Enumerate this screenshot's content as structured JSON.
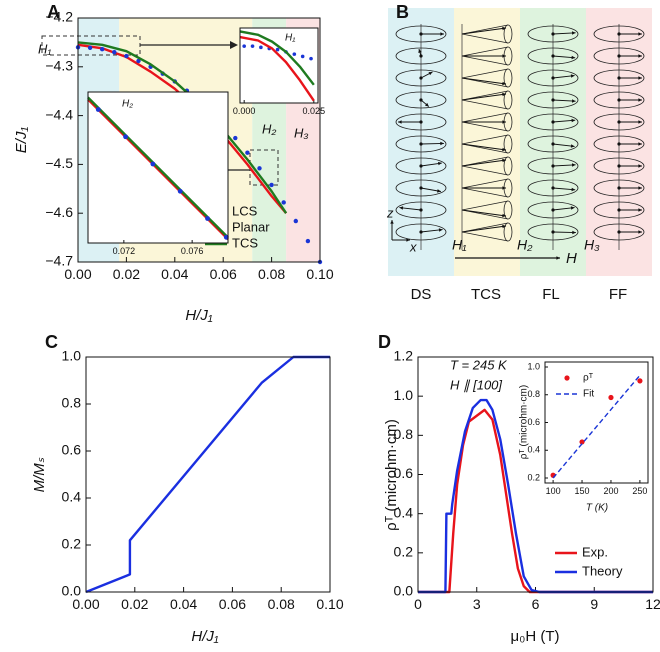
{
  "chart_data": [
    {
      "type": "line",
      "panel": "A",
      "xlabel": "H/J₁",
      "ylabel": "E/J₁",
      "xlim": [
        0,
        0.1
      ],
      "ylim": [
        -4.7,
        -4.2
      ],
      "xticks": [
        {
          "value": 0,
          "label": "0.00"
        },
        0.02,
        0.04,
        0.06,
        0.08,
        {
          "value": 0.1,
          "label": "0.10"
        }
      ],
      "yticks": [
        {
          "value": -4.7,
          "label": "−4.7"
        },
        {
          "value": -4.6,
          "label": "−4.6"
        },
        {
          "value": -4.5,
          "label": "−4.5"
        },
        {
          "value": -4.4,
          "label": "−4.4"
        },
        {
          "value": -4.3,
          "label": "−4.3"
        },
        {
          "value": -4.2,
          "label": "−4.2"
        }
      ],
      "regions": [
        {
          "from": 0,
          "to": 0.017,
          "color": "#dcf1f4"
        },
        {
          "from": 0.017,
          "to": 0.072,
          "color": "#fbf6d8"
        },
        {
          "from": 0.072,
          "to": 0.086,
          "color": "#def3de"
        },
        {
          "from": 0.086,
          "to": 0.1,
          "color": "#fbe3e3"
        }
      ],
      "annotations": [
        "H₁",
        "H₂",
        "H₃"
      ],
      "legend": "lower right",
      "series": [
        {
          "name": "LCS",
          "color": "#e8141b",
          "style": "line",
          "x": [
            0,
            0.01,
            0.02,
            0.03,
            0.04,
            0.05,
            0.06,
            0.07,
            0.08,
            0.086
          ],
          "values": [
            -4.255,
            -4.262,
            -4.28,
            -4.31,
            -4.345,
            -4.39,
            -4.44,
            -4.5,
            -4.565,
            -4.6
          ]
        },
        {
          "name": "Planar",
          "color": "#1a35d6",
          "style": "dots",
          "x": [
            0,
            0.005,
            0.01,
            0.015,
            0.02,
            0.025,
            0.03,
            0.035,
            0.04,
            0.045,
            0.05,
            0.055,
            0.06,
            0.065,
            0.07,
            0.075,
            0.08,
            0.085,
            0.09,
            0.095,
            0.1
          ],
          "values": [
            -4.26,
            -4.261,
            -4.264,
            -4.27,
            -4.278,
            -4.288,
            -4.3,
            -4.314,
            -4.33,
            -4.349,
            -4.37,
            -4.393,
            -4.418,
            -4.446,
            -4.476,
            -4.508,
            -4.542,
            -4.578,
            -4.616,
            -4.657,
            -4.7
          ]
        },
        {
          "name": "TCS",
          "color": "#1f7a1f",
          "style": "line",
          "x": [
            0,
            0.01,
            0.02,
            0.03,
            0.04,
            0.05,
            0.06,
            0.07,
            0.08,
            0.086
          ],
          "values": [
            -4.25,
            -4.255,
            -4.268,
            -4.295,
            -4.33,
            -4.375,
            -4.43,
            -4.49,
            -4.555,
            -4.6
          ]
        }
      ]
    },
    {
      "type": "line",
      "xlim": [
        -0.0015,
        0.0265
      ],
      "ylim": [
        -4.312,
        -4.246
      ],
      "xticks": [
        {
          "value": 0,
          "label": "0.000"
        },
        {
          "value": 0.025,
          "label": "0.025"
        }
      ],
      "annotations": [
        "H₁"
      ],
      "series": [
        {
          "color": "#1a35d6",
          "style": "dots",
          "x": [
            0,
            0.003,
            0.006,
            0.009,
            0.012,
            0.015,
            0.018,
            0.021,
            0.024
          ],
          "values": [
            -4.262,
            -4.262,
            -4.263,
            -4.264,
            -4.265,
            -4.267,
            -4.269,
            -4.271,
            -4.273
          ]
        },
        {
          "color": "#e8141b",
          "style": "line",
          "x": [
            -0.0015,
            0.005,
            0.01,
            0.015,
            0.02,
            0.025
          ],
          "values": [
            -4.254,
            -4.257,
            -4.264,
            -4.276,
            -4.292,
            -4.31
          ]
        },
        {
          "color": "#1f7a1f",
          "style": "line",
          "x": [
            -0.0015,
            0.005,
            0.01,
            0.015,
            0.02,
            0.025
          ],
          "values": [
            -4.249,
            -4.252,
            -4.258,
            -4.267,
            -4.28,
            -4.296
          ]
        }
      ]
    },
    {
      "type": "line",
      "xlim": [
        0.0699,
        0.0781
      ],
      "ylim": [
        -4.547,
        -4.465
      ],
      "xticks": [
        0.072,
        0.076
      ],
      "annotations": [
        "H₂"
      ],
      "series": [
        {
          "color": "#e8141b",
          "style": "line",
          "x": [
            0.0699,
            0.0781
          ],
          "values": [
            -4.469,
            -4.545
          ]
        },
        {
          "color": "#1f7a1f",
          "style": "line",
          "x": [
            0.0699,
            0.0781
          ],
          "values": [
            -4.468,
            -4.544
          ]
        },
        {
          "color": "#1a35d6",
          "style": "dots",
          "x": [
            0.0705,
            0.0721,
            0.0737,
            0.0753,
            0.0769,
            0.078
          ],
          "values": [
            -4.4745,
            -4.4893,
            -4.5041,
            -4.5189,
            -4.5337,
            -4.5439
          ]
        }
      ]
    },
    {
      "type": "line",
      "panel": "C",
      "xlabel": "H/J₁",
      "ylabel": "M/Mₛ",
      "xlim": [
        0,
        0.1
      ],
      "ylim": [
        0,
        1
      ],
      "xticks": [
        {
          "value": 0,
          "label": "0.00"
        },
        0.02,
        0.04,
        0.06,
        0.08,
        {
          "value": 0.1,
          "label": "0.10"
        }
      ],
      "yticks": [
        {
          "value": 0,
          "label": "0.0"
        },
        0.2,
        0.4,
        0.6,
        0.8,
        {
          "value": 1,
          "label": "1.0"
        }
      ],
      "series": [
        {
          "color": "#1a2fe0",
          "style": "line",
          "x": [
            0,
            0.018,
            0.018,
            0.072,
            0.085,
            0.1
          ],
          "values": [
            0,
            0.075,
            0.22,
            0.89,
            1,
            1
          ]
        }
      ]
    },
    {
      "type": "line",
      "panel": "D",
      "xlabel": "μ₀H (T)",
      "ylabel": "ρᵀ (microhm·cm)",
      "xlim": [
        0,
        12
      ],
      "ylim": [
        0,
        1.2
      ],
      "xticks": [
        0,
        3,
        6,
        9,
        12
      ],
      "yticks": [
        {
          "value": 0,
          "label": "0.0"
        },
        0.2,
        0.4,
        0.6,
        0.8,
        {
          "value": 1,
          "label": "1.0"
        },
        1.2
      ],
      "annotations": [
        "T = 245 K",
        "H ∥ [100]"
      ],
      "legend": "lower right",
      "series": [
        {
          "name": "Exp.",
          "color": "#e8141b",
          "style": "line",
          "x": [
            0,
            1.6,
            1.8,
            2,
            2.3,
            2.6,
            3,
            3.4,
            3.8,
            4.2,
            4.5,
            4.8,
            5.1,
            5.4,
            5.7,
            12
          ],
          "values": [
            0,
            0,
            0.3,
            0.55,
            0.75,
            0.87,
            0.9,
            0.93,
            0.88,
            0.7,
            0.5,
            0.3,
            0.12,
            0.03,
            0,
            0
          ]
        },
        {
          "name": "Theory",
          "color": "#1a2fe0",
          "style": "line",
          "x": [
            0,
            1.4,
            1.45,
            1.7,
            1.75,
            2,
            2.4,
            2.8,
            3.2,
            3.5,
            3.8,
            4.2,
            4.6,
            5,
            5.4,
            5.8,
            6.2,
            12
          ],
          "values": [
            0,
            0,
            0.4,
            0.4,
            0.45,
            0.62,
            0.82,
            0.94,
            0.98,
            0.98,
            0.93,
            0.78,
            0.55,
            0.3,
            0.08,
            0.01,
            0,
            0
          ]
        }
      ]
    },
    {
      "type": "line",
      "xlabel": "T (K)",
      "ylabel": "ρᵀ (microhm·cm)",
      "xlim": [
        86,
        264
      ],
      "ylim": [
        0.164,
        1.036
      ],
      "xticks": [
        100,
        150,
        200,
        250
      ],
      "yticks": [
        0.2,
        0.4,
        0.6,
        0.8,
        {
          "value": 1,
          "label": "1.0"
        }
      ],
      "legend": "upper left",
      "series": [
        {
          "name": "ρᵀ",
          "color": "#e8141b",
          "style": "dots",
          "x": [
            100,
            150,
            200,
            250
          ],
          "values": [
            0.22,
            0.46,
            0.78,
            0.9
          ]
        },
        {
          "name": "Fit",
          "color": "#1a35d6",
          "style": "dash",
          "x": [
            100,
            250
          ],
          "values": [
            0.2,
            0.94
          ]
        }
      ]
    }
  ],
  "panel_b": {
    "panel": "B",
    "phases": [
      "DS",
      "TCS",
      "FL",
      "FF"
    ],
    "transitions": [
      "H₁",
      "H₂",
      "H₃"
    ],
    "field": "H",
    "axis_z": "z",
    "axis_x": "x"
  }
}
